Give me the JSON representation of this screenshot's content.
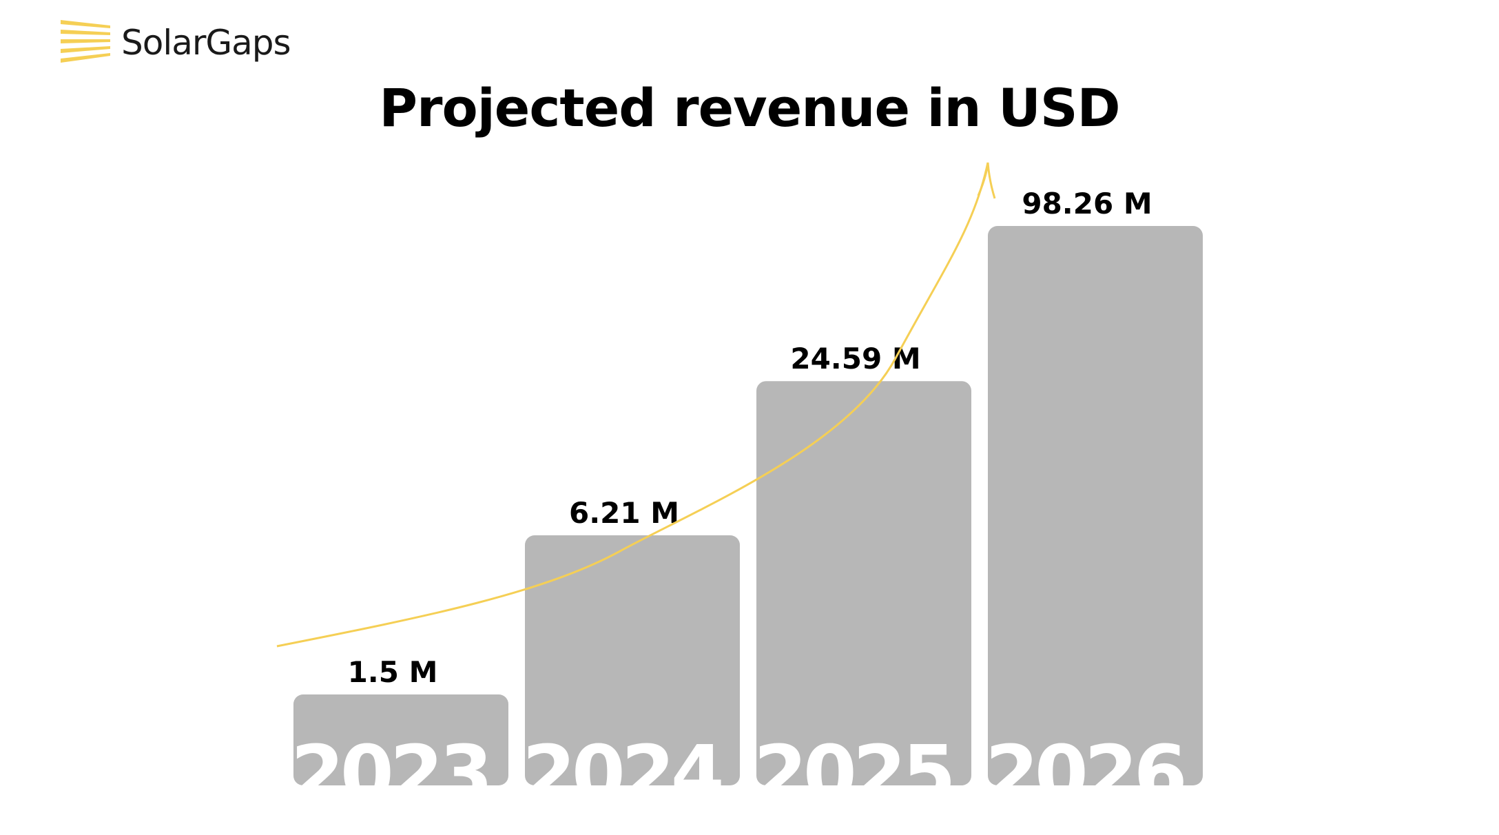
{
  "brand": {
    "name": "SolarGaps",
    "accent_color": "#F5CF55",
    "icon": "sun-rays-icon"
  },
  "title": {
    "before": "Projected",
    "highlight": "revenue",
    "after": "in USD"
  },
  "chart_data": {
    "type": "bar",
    "title": "Projected revenue in USD",
    "categories": [
      "2023",
      "2024",
      "2025",
      "2026"
    ],
    "values": [
      1.5,
      6.21,
      24.59,
      98.26
    ],
    "value_labels": [
      "1.5 M",
      "6.21 M",
      "24.59 M",
      "98.26 M"
    ],
    "unit": "M",
    "xlabel": "",
    "ylabel": "",
    "grid": false,
    "legend": "none",
    "bar_color": "#B7B7B7",
    "category_label_color": "#FFFFFF",
    "trend_arrow_color": "#F5CF55"
  }
}
